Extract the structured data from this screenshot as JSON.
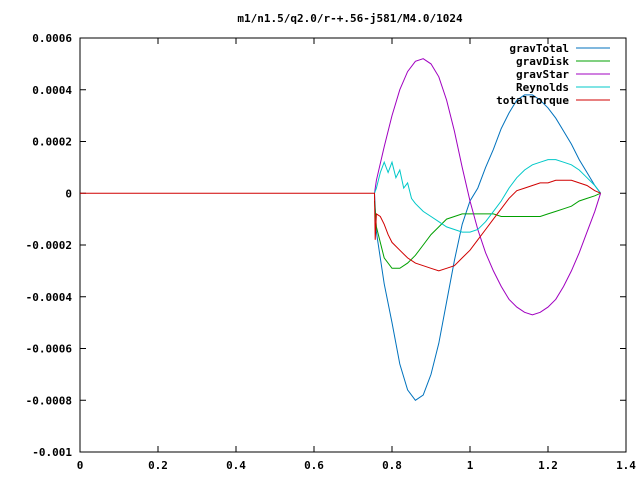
{
  "chart_data": {
    "type": "line",
    "title": "m1/n1.5/q2.0/r-+.56-j581/M4.0/1024",
    "xlabel": "",
    "ylabel": "",
    "xlim": [
      0,
      1.4
    ],
    "ylim": [
      -0.001,
      0.0006
    ],
    "xticks": [
      0,
      0.2,
      0.4,
      0.6,
      0.8,
      1,
      1.2,
      1.4
    ],
    "xtick_labels": [
      "0",
      "0.2",
      "0.4",
      "0.6",
      "0.8",
      "1",
      "1.2",
      "1.4"
    ],
    "yticks": [
      0.0006,
      0.0004,
      0.0002,
      0,
      -0.0002,
      -0.0004,
      -0.0006,
      -0.0008,
      -0.001
    ],
    "ytick_labels": [
      "0.0006",
      "0.0004",
      "0.0002",
      "0",
      "-0.0002",
      "-0.0004",
      "-0.0006",
      "-0.0008",
      "-0.001"
    ],
    "grid": false,
    "legend_position": "top-right",
    "series": [
      {
        "name": "gravTotal",
        "color": "#0072bd",
        "points": [
          [
            0.755,
            0
          ],
          [
            0.76,
            -0.00015
          ],
          [
            0.78,
            -0.00035
          ],
          [
            0.8,
            -0.0005
          ],
          [
            0.82,
            -0.00066
          ],
          [
            0.84,
            -0.00076
          ],
          [
            0.86,
            -0.0008
          ],
          [
            0.88,
            -0.00078
          ],
          [
            0.9,
            -0.0007
          ],
          [
            0.92,
            -0.00058
          ],
          [
            0.94,
            -0.00042
          ],
          [
            0.96,
            -0.00026
          ],
          [
            0.98,
            -0.00012
          ],
          [
            1.0,
            -3e-05
          ],
          [
            1.02,
            2e-05
          ],
          [
            1.04,
            0.0001
          ],
          [
            1.06,
            0.00017
          ],
          [
            1.08,
            0.00025
          ],
          [
            1.1,
            0.00031
          ],
          [
            1.12,
            0.00036
          ],
          [
            1.14,
            0.00038
          ],
          [
            1.16,
            0.00038
          ],
          [
            1.18,
            0.00036
          ],
          [
            1.2,
            0.00033
          ],
          [
            1.22,
            0.00029
          ],
          [
            1.24,
            0.00024
          ],
          [
            1.26,
            0.00019
          ],
          [
            1.28,
            0.00013
          ],
          [
            1.3,
            8e-05
          ],
          [
            1.32,
            3e-05
          ],
          [
            1.335,
            0
          ]
        ]
      },
      {
        "name": "gravDisk",
        "color": "#00a000",
        "points": [
          [
            0.755,
            -3e-05
          ],
          [
            0.76,
            -0.00013
          ],
          [
            0.78,
            -0.00025
          ],
          [
            0.8,
            -0.00029
          ],
          [
            0.82,
            -0.00029
          ],
          [
            0.84,
            -0.00027
          ],
          [
            0.86,
            -0.00024
          ],
          [
            0.88,
            -0.0002
          ],
          [
            0.9,
            -0.00016
          ],
          [
            0.92,
            -0.00013
          ],
          [
            0.94,
            -0.0001
          ],
          [
            0.96,
            -9e-05
          ],
          [
            0.98,
            -8e-05
          ],
          [
            1.0,
            -8e-05
          ],
          [
            1.02,
            -8e-05
          ],
          [
            1.04,
            -8e-05
          ],
          [
            1.06,
            -8e-05
          ],
          [
            1.08,
            -9e-05
          ],
          [
            1.1,
            -9e-05
          ],
          [
            1.12,
            -9e-05
          ],
          [
            1.14,
            -9e-05
          ],
          [
            1.16,
            -9e-05
          ],
          [
            1.18,
            -9e-05
          ],
          [
            1.2,
            -8e-05
          ],
          [
            1.22,
            -7e-05
          ],
          [
            1.24,
            -6e-05
          ],
          [
            1.26,
            -5e-05
          ],
          [
            1.28,
            -3e-05
          ],
          [
            1.3,
            -2e-05
          ],
          [
            1.32,
            -1e-05
          ],
          [
            1.335,
            0
          ]
        ]
      },
      {
        "name": "gravStar",
        "color": "#a000c0",
        "points": [
          [
            0.755,
            0
          ],
          [
            0.76,
            5e-05
          ],
          [
            0.78,
            0.00018
          ],
          [
            0.8,
            0.0003
          ],
          [
            0.82,
            0.0004
          ],
          [
            0.84,
            0.00047
          ],
          [
            0.86,
            0.00051
          ],
          [
            0.88,
            0.00052
          ],
          [
            0.9,
            0.0005
          ],
          [
            0.92,
            0.00045
          ],
          [
            0.94,
            0.00036
          ],
          [
            0.96,
            0.00024
          ],
          [
            0.98,
            0.0001
          ],
          [
            1.0,
            -3e-05
          ],
          [
            1.02,
            -0.00014
          ],
          [
            1.04,
            -0.00023
          ],
          [
            1.06,
            -0.0003
          ],
          [
            1.08,
            -0.00036
          ],
          [
            1.1,
            -0.00041
          ],
          [
            1.12,
            -0.00044
          ],
          [
            1.14,
            -0.00046
          ],
          [
            1.16,
            -0.00047
          ],
          [
            1.18,
            -0.00046
          ],
          [
            1.2,
            -0.00044
          ],
          [
            1.22,
            -0.00041
          ],
          [
            1.24,
            -0.00036
          ],
          [
            1.26,
            -0.0003
          ],
          [
            1.28,
            -0.00023
          ],
          [
            1.3,
            -0.00015
          ],
          [
            1.32,
            -7e-05
          ],
          [
            1.335,
            0
          ]
        ]
      },
      {
        "name": "Reynolds",
        "color": "#00c8c8",
        "points": [
          [
            0.755,
            0
          ],
          [
            0.76,
            2e-05
          ],
          [
            0.77,
            8e-05
          ],
          [
            0.78,
            0.00012
          ],
          [
            0.79,
            8e-05
          ],
          [
            0.8,
            0.00012
          ],
          [
            0.81,
            6e-05
          ],
          [
            0.82,
            9e-05
          ],
          [
            0.83,
            2e-05
          ],
          [
            0.84,
            4e-05
          ],
          [
            0.85,
            -2e-05
          ],
          [
            0.86,
            -4e-05
          ],
          [
            0.88,
            -7e-05
          ],
          [
            0.9,
            -9e-05
          ],
          [
            0.92,
            -0.00011
          ],
          [
            0.94,
            -0.00013
          ],
          [
            0.96,
            -0.00014
          ],
          [
            0.98,
            -0.00015
          ],
          [
            1.0,
            -0.00015
          ],
          [
            1.02,
            -0.00014
          ],
          [
            1.04,
            -0.00011
          ],
          [
            1.06,
            -7e-05
          ],
          [
            1.08,
            -3e-05
          ],
          [
            1.1,
            2e-05
          ],
          [
            1.12,
            6e-05
          ],
          [
            1.14,
            9e-05
          ],
          [
            1.16,
            0.00011
          ],
          [
            1.18,
            0.00012
          ],
          [
            1.2,
            0.00013
          ],
          [
            1.22,
            0.00013
          ],
          [
            1.24,
            0.00012
          ],
          [
            1.26,
            0.00011
          ],
          [
            1.28,
            9e-05
          ],
          [
            1.3,
            6e-05
          ],
          [
            1.32,
            3e-05
          ],
          [
            1.335,
            0
          ]
        ]
      },
      {
        "name": "totalTorque",
        "color": "#d00000",
        "points": [
          [
            0,
            0
          ],
          [
            0.755,
            0
          ],
          [
            0.757,
            -0.00018
          ],
          [
            0.76,
            -8e-05
          ],
          [
            0.77,
            -9e-05
          ],
          [
            0.78,
            -0.00012
          ],
          [
            0.79,
            -0.00016
          ],
          [
            0.8,
            -0.00019
          ],
          [
            0.82,
            -0.00022
          ],
          [
            0.84,
            -0.00025
          ],
          [
            0.86,
            -0.00027
          ],
          [
            0.88,
            -0.00028
          ],
          [
            0.9,
            -0.00029
          ],
          [
            0.92,
            -0.0003
          ],
          [
            0.94,
            -0.00029
          ],
          [
            0.96,
            -0.00028
          ],
          [
            0.98,
            -0.00025
          ],
          [
            1.0,
            -0.00022
          ],
          [
            1.02,
            -0.00018
          ],
          [
            1.04,
            -0.00014
          ],
          [
            1.06,
            -0.0001
          ],
          [
            1.08,
            -6e-05
          ],
          [
            1.1,
            -2e-05
          ],
          [
            1.12,
            1e-05
          ],
          [
            1.14,
            2e-05
          ],
          [
            1.16,
            3e-05
          ],
          [
            1.18,
            4e-05
          ],
          [
            1.2,
            4e-05
          ],
          [
            1.22,
            5e-05
          ],
          [
            1.24,
            5e-05
          ],
          [
            1.26,
            5e-05
          ],
          [
            1.28,
            4e-05
          ],
          [
            1.3,
            3e-05
          ],
          [
            1.32,
            1e-05
          ],
          [
            1.335,
            0
          ]
        ]
      }
    ]
  }
}
